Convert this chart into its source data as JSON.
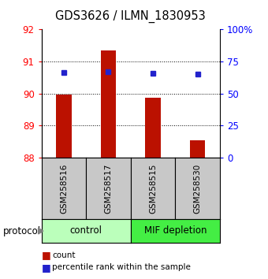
{
  "title": "GDS3626 / ILMN_1830953",
  "samples": [
    "GSM258516",
    "GSM258517",
    "GSM258515",
    "GSM258530"
  ],
  "bar_values": [
    89.97,
    91.35,
    89.87,
    88.55
  ],
  "percentile_values": [
    90.65,
    90.68,
    90.63,
    90.6
  ],
  "bar_bottom": 88.0,
  "ylim_left": [
    88,
    92
  ],
  "ylim_right": [
    0,
    100
  ],
  "left_yticks": [
    88,
    89,
    90,
    91,
    92
  ],
  "right_yticks": [
    0,
    25,
    50,
    75,
    100
  ],
  "right_yticklabels": [
    "0",
    "25",
    "50",
    "75",
    "100%"
  ],
  "bar_color": "#bb1100",
  "percentile_color": "#2222cc",
  "groups": [
    {
      "label": "control",
      "samples": [
        0,
        1
      ],
      "color": "#bbffbb"
    },
    {
      "label": "MIF depletion",
      "samples": [
        2,
        3
      ],
      "color": "#44ee44"
    }
  ],
  "sample_box_color": "#c8c8c8",
  "protocol_label": "protocol",
  "bar_width": 0.35,
  "figsize": [
    3.4,
    3.54
  ],
  "dpi": 100
}
